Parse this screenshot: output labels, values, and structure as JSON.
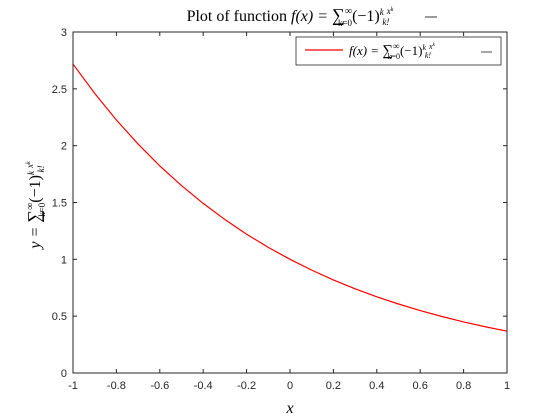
{
  "chart_data": {
    "type": "line",
    "title": {
      "prefix": "Plot of function ",
      "fx": "f(x) = ",
      "sum": "∑",
      "sum_upper": "∞",
      "sum_lower": "k=0",
      "term": "(−1)",
      "term_exp": "k",
      "frac_num": "x",
      "frac_num_exp": "k",
      "frac_den": "k!"
    },
    "legend": {
      "placement": "top-right",
      "fx": "f(x) = ",
      "sum": "∑",
      "sum_upper": "∞",
      "sum_lower": "k=0",
      "term": "(−1)",
      "term_exp": "k",
      "frac_num": "x",
      "frac_num_exp": "k",
      "frac_den": "k!"
    },
    "xlabel": "x",
    "ylabel": {
      "lhs": "y = ",
      "sum": "∑",
      "sum_upper": "∞",
      "sum_lower": "k=0",
      "term": "(−1)",
      "term_exp": "k",
      "frac_num": "x",
      "frac_num_exp": "k",
      "frac_den": "k!"
    },
    "xlim": [
      -1,
      1
    ],
    "ylim": [
      0,
      3
    ],
    "xticks": [
      "-1",
      "-0.8",
      "-0.6",
      "-0.4",
      "-0.2",
      "0",
      "0.2",
      "0.4",
      "0.6",
      "0.8",
      "1"
    ],
    "yticks": [
      "0",
      "0.5",
      "1",
      "1.5",
      "2",
      "2.5",
      "3"
    ],
    "grid": false,
    "series": [
      {
        "color": "#ff0000",
        "x": [
          -1,
          -0.9,
          -0.8,
          -0.7,
          -0.6,
          -0.5,
          -0.4,
          -0.3,
          -0.2,
          -0.1,
          0,
          0.1,
          0.2,
          0.3,
          0.4,
          0.5,
          0.6,
          0.7,
          0.8,
          0.9,
          1
        ],
        "y": [
          2.718,
          2.46,
          2.226,
          2.014,
          1.822,
          1.649,
          1.492,
          1.35,
          1.221,
          1.105,
          1.0,
          0.905,
          0.819,
          0.741,
          0.67,
          0.607,
          0.549,
          0.497,
          0.449,
          0.407,
          0.368
        ]
      }
    ]
  }
}
